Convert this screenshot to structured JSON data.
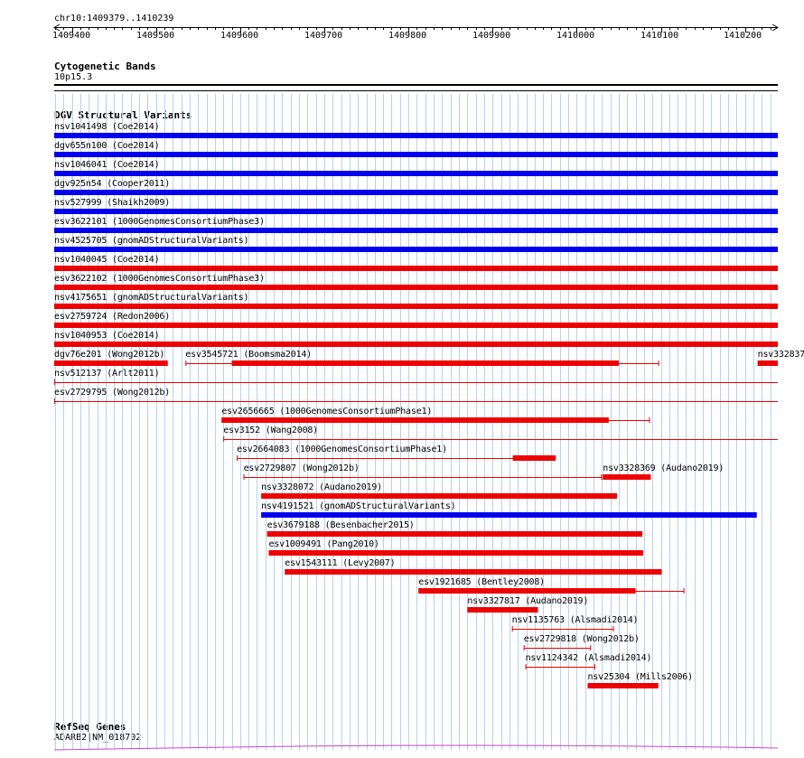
{
  "position": "chr10:1409379..1410239",
  "ruler_ticks": [
    "1409400",
    "1409500",
    "1409600",
    "1409700",
    "1409800",
    "1409900",
    "1410000",
    "1410100",
    "1410200"
  ],
  "tracks": {
    "cytoband": {
      "title": "Cytogenetic Bands",
      "band": "10p15.3"
    },
    "dgv": {
      "title": "DGV Structural Variants"
    },
    "refseq": {
      "title": "RefSeq Genes",
      "gene": "ADARB2|NM_018702"
    }
  },
  "colors": {
    "gain": "#0000ee",
    "loss": "#ee0000",
    "grid": "#b4d2ee",
    "gene": "#cc44cc"
  },
  "variants": [
    {
      "name": "nsv1041498 (Coe2014)",
      "color": "gain",
      "start": 1409379,
      "end": 1410239,
      "full": true
    },
    {
      "name": "dgv655n100 (Coe2014)",
      "color": "gain",
      "start": 1409379,
      "end": 1410239,
      "full": true
    },
    {
      "name": "nsv1046041 (Coe2014)",
      "color": "gain",
      "start": 1409379,
      "end": 1410239,
      "full": true
    },
    {
      "name": "dgv925n54 (Cooper2011)",
      "color": "gain",
      "start": 1409379,
      "end": 1410239,
      "full": true
    },
    {
      "name": "nsv527999 (Shaikh2009)",
      "color": "gain",
      "start": 1409379,
      "end": 1410239,
      "full": true
    },
    {
      "name": "esv3622101 (1000GenomesConsortiumPhase3)",
      "color": "gain",
      "start": 1409379,
      "end": 1410239,
      "full": true
    },
    {
      "name": "nsv4525705 (gnomADStructuralVariants)",
      "color": "gain",
      "start": 1409379,
      "end": 1410239,
      "full": true
    },
    {
      "name": "nsv1040045 (Coe2014)",
      "color": "loss",
      "start": 1409379,
      "end": 1410239,
      "full": true
    },
    {
      "name": "esv3622102 (1000GenomesConsortiumPhase3)",
      "color": "loss",
      "start": 1409379,
      "end": 1410239,
      "full": true
    },
    {
      "name": "nsv4175651 (gnomADStructuralVariants)",
      "color": "loss",
      "start": 1409379,
      "end": 1410239,
      "full": true
    },
    {
      "name": "esv2759724 (Redon2006)",
      "color": "loss",
      "start": 1409379,
      "end": 1410239,
      "full": true
    },
    {
      "name": "nsv1040953 (Coe2014)",
      "color": "loss",
      "start": 1409379,
      "end": 1410239,
      "full": true
    },
    {
      "name": "dgv76e201 (Wong2012b)",
      "color": "loss",
      "start": 1409379,
      "end": 1409514,
      "full": true
    },
    {
      "name": "esv3545721 (Boomsma2014)",
      "color": "loss",
      "start": 1409535,
      "end": 1410098,
      "thick_start": 1409590,
      "thick_end": 1410050
    },
    {
      "name": "nsv332837",
      "color": "loss",
      "start": 1410215,
      "end": 1410239,
      "full": true
    },
    {
      "name": "nsv512137 (Arlt2011)",
      "color": "loss",
      "start": 1409379,
      "end": 1410239,
      "thin": true
    },
    {
      "name": "esv2729795 (Wong2012b)",
      "color": "loss",
      "start": 1409379,
      "end": 1410239,
      "thin": true
    },
    {
      "name": "esv2656665 (1000GenomesConsortiumPhase1)",
      "color": "loss",
      "start": 1409578,
      "end": 1410087,
      "thick_start": 1409578,
      "thick_end": 1410038
    },
    {
      "name": "esv3152 (Wang2008)",
      "color": "loss",
      "start": 1409580,
      "end": 1410239,
      "thin": true
    },
    {
      "name": "esv2664083 (1000GenomesConsortiumPhase1)",
      "color": "loss",
      "start": 1409596,
      "end": 1409975,
      "thick_start": 1409924,
      "thick_end": 1409975
    },
    {
      "name": "esv2729807 (Wong2012b)",
      "color": "loss",
      "start": 1409604,
      "end": 1410030,
      "thin": true
    },
    {
      "name": "nsv3328369 (Audano2019)",
      "color": "loss",
      "start": 1410031,
      "end": 1410088,
      "full": true
    },
    {
      "name": "nsv3328072 (Audano2019)",
      "color": "loss",
      "start": 1409625,
      "end": 1410048,
      "full": true
    },
    {
      "name": "nsv4191521 (gnomADStructuralVariants)",
      "color": "gain",
      "start": 1409625,
      "end": 1410214,
      "full": true
    },
    {
      "name": "esv3679188 (Besenbacher2015)",
      "color": "loss",
      "start": 1409632,
      "end": 1410078,
      "full": true
    },
    {
      "name": "esv1009491 (Pang2010)",
      "color": "loss",
      "start": 1409634,
      "end": 1410079,
      "full": true
    },
    {
      "name": "esv1543111 (Levy2007)",
      "color": "loss",
      "start": 1409653,
      "end": 1410101,
      "full": true
    },
    {
      "name": "esv1921685 (Bentley2008)",
      "color": "loss",
      "start": 1409812,
      "end": 1410128,
      "thick_start": 1409812,
      "thick_end": 1410070
    },
    {
      "name": "nsv3327817 (Audano2019)",
      "color": "loss",
      "start": 1409870,
      "end": 1409954,
      "full": true
    },
    {
      "name": "nsv1135763 (Alsmadi2014)",
      "color": "loss",
      "start": 1409923,
      "end": 1410044,
      "thin": true
    },
    {
      "name": "esv2729818 (Wong2012b)",
      "color": "loss",
      "start": 1409937,
      "end": 1410017,
      "thin": true
    },
    {
      "name": "nsv1124342 (Alsmadi2014)",
      "color": "loss",
      "start": 1409939,
      "end": 1410022,
      "thin": true
    },
    {
      "name": "nsv25304 (Mills2006)",
      "color": "loss",
      "start": 1410013,
      "end": 1410097,
      "full": true
    }
  ]
}
